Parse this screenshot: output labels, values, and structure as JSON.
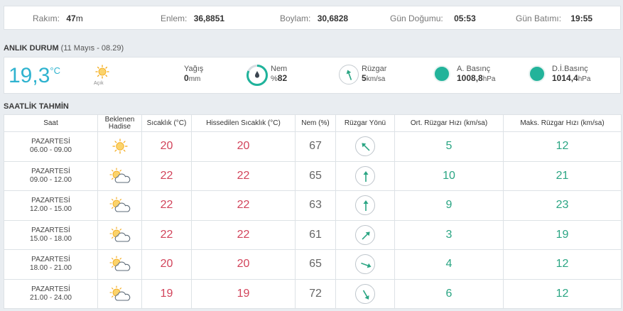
{
  "info": {
    "altitude_label": "Rakım:",
    "altitude_value": "47",
    "altitude_unit": "m",
    "lat_label": "Enlem:",
    "lat_value": "36,8851",
    "lon_label": "Boylam:",
    "lon_value": "30,6828",
    "sunrise_label": "Gün Doğumu:",
    "sunrise_value": "05:53",
    "sunset_label": "Gün Batımı:",
    "sunset_value": "19:55"
  },
  "current": {
    "title": "ANLIK DURUM",
    "subtitle": "(11 Mayıs - 08.29)",
    "temp": "19,3",
    "temp_unit": "°C",
    "condition": "Açık",
    "condition_icon": "sun-icon",
    "rain_label": "Yağış",
    "rain_value": "0",
    "rain_unit": "mm",
    "humidity_label": "Nem",
    "humidity_prefix": "%",
    "humidity_value": "82",
    "wind_label": "Rüzgar",
    "wind_value": "5",
    "wind_unit": "km/sa",
    "pressure_label": "A. Basınç",
    "pressure_value": "1008,8",
    "pressure_unit": "hPa",
    "sea_pressure_label": "D.İ.Basınç",
    "sea_pressure_value": "1014,4",
    "sea_pressure_unit": "hPa",
    "colors": {
      "accent": "#2fb3cf",
      "pressure_dot": "#22b39a"
    }
  },
  "hourly": {
    "title": "SAATLİK TAHMİN",
    "headers": {
      "time": "Saat",
      "condition_line1": "Beklenen",
      "condition_line2": "Hadise",
      "temp": "Sıcaklık (°C)",
      "feels": "Hissedilen Sıcaklık (°C)",
      "humidity": "Nem (%)",
      "wind_dir": "Rüzgar Yönü",
      "avg_wind": "Ort. Rüzgar Hızı (km/sa)",
      "max_wind": "Maks. Rüzgar Hızı (km/sa)"
    },
    "rows": [
      {
        "day": "PAZARTESİ",
        "range": "06.00 - 09.00",
        "icon": "sun-icon",
        "temp": "20",
        "feels": "20",
        "humidity": "67",
        "wind_dir_deg": 315,
        "avg_wind": "5",
        "max_wind": "12"
      },
      {
        "day": "PAZARTESİ",
        "range": "09.00 - 12.00",
        "icon": "partly-cloudy-icon",
        "temp": "22",
        "feels": "22",
        "humidity": "65",
        "wind_dir_deg": 0,
        "avg_wind": "10",
        "max_wind": "21"
      },
      {
        "day": "PAZARTESİ",
        "range": "12.00 - 15.00",
        "icon": "partly-cloudy-icon",
        "temp": "22",
        "feels": "22",
        "humidity": "63",
        "wind_dir_deg": 0,
        "avg_wind": "9",
        "max_wind": "23"
      },
      {
        "day": "PAZARTESİ",
        "range": "15.00 - 18.00",
        "icon": "partly-cloudy-icon",
        "temp": "22",
        "feels": "22",
        "humidity": "61",
        "wind_dir_deg": 45,
        "avg_wind": "3",
        "max_wind": "19"
      },
      {
        "day": "PAZARTESİ",
        "range": "18.00 - 21.00",
        "icon": "partly-cloudy-icon",
        "temp": "20",
        "feels": "20",
        "humidity": "65",
        "wind_dir_deg": 110,
        "avg_wind": "4",
        "max_wind": "12"
      },
      {
        "day": "PAZARTESİ",
        "range": "21.00 - 24.00",
        "icon": "partly-cloudy-icon",
        "temp": "19",
        "feels": "19",
        "humidity": "72",
        "wind_dir_deg": 150,
        "avg_wind": "6",
        "max_wind": "12"
      }
    ]
  }
}
